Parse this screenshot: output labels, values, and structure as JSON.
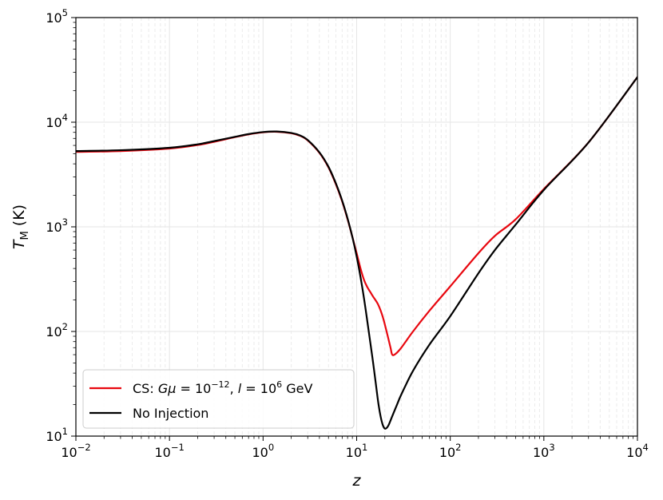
{
  "chart_data": {
    "type": "line",
    "xscale": "log",
    "yscale": "log",
    "xlim": [
      0.01,
      10000
    ],
    "ylim": [
      10,
      100000
    ],
    "grid": true,
    "legend_position": "lower-left",
    "xlabel": "z",
    "ylabel": {
      "main": "T",
      "sub": "M",
      "unit": " (K)"
    },
    "x_ticks": [
      {
        "value": 0.01,
        "base": "10",
        "exp": "−2"
      },
      {
        "value": 0.1,
        "base": "10",
        "exp": "−1"
      },
      {
        "value": 1,
        "base": "10",
        "exp": "0"
      },
      {
        "value": 10,
        "base": "10",
        "exp": "1"
      },
      {
        "value": 100,
        "base": "10",
        "exp": "2"
      },
      {
        "value": 1000,
        "base": "10",
        "exp": "3"
      },
      {
        "value": 10000,
        "base": "10",
        "exp": "4"
      }
    ],
    "y_ticks": [
      {
        "value": 10,
        "base": "10",
        "exp": "1"
      },
      {
        "value": 100,
        "base": "10",
        "exp": "2"
      },
      {
        "value": 1000,
        "base": "10",
        "exp": "3"
      },
      {
        "value": 10000,
        "base": "10",
        "exp": "4"
      },
      {
        "value": 100000,
        "base": "10",
        "exp": "5"
      }
    ],
    "series": [
      {
        "name": "CS: Gμ = 10^−12, l = 10^6 GeV",
        "legend": {
          "prefix": "CS: ",
          "g": "G",
          "mu": "μ",
          "eq1": " = 10",
          "exp1": "−12",
          "comma": ", ",
          "l": "l",
          "eq2": " = 10",
          "exp2": "6",
          "unit": " GeV"
        },
        "color": "#e8070f",
        "x": [
          0.01,
          0.03,
          0.1,
          0.2,
          0.3,
          0.5,
          0.7,
          1.0,
          1.4,
          2.0,
          2.5,
          3.0,
          4.0,
          5.0,
          6.0,
          7.0,
          8.0,
          9.0,
          10,
          11,
          12,
          13,
          14,
          15,
          17,
          19,
          21,
          23,
          24,
          26,
          30,
          40,
          60,
          100,
          200,
          300,
          500,
          1000,
          3000,
          10000
        ],
        "y": [
          5200,
          5300,
          5600,
          6050,
          6500,
          7200,
          7650,
          8000,
          8100,
          7850,
          7400,
          6700,
          5100,
          3700,
          2550,
          1750,
          1180,
          800,
          560,
          400,
          310,
          265,
          238,
          215,
          180,
          138,
          98,
          70,
          60,
          61,
          70,
          100,
          158,
          270,
          560,
          820,
          1180,
          2300,
          6400,
          27000
        ]
      },
      {
        "name": "No Injection",
        "color": "#000000",
        "x": [
          0.01,
          0.03,
          0.1,
          0.2,
          0.3,
          0.5,
          0.7,
          1.0,
          1.4,
          2.0,
          2.5,
          3.0,
          4.0,
          5.0,
          6.0,
          7.0,
          8.0,
          9.0,
          10,
          11,
          12,
          13,
          14,
          15,
          16,
          17,
          18,
          19,
          20,
          21,
          22,
          24,
          27,
          30,
          40,
          60,
          100,
          200,
          300,
          500,
          1000,
          3000,
          10000
        ],
        "y": [
          5300,
          5400,
          5700,
          6150,
          6600,
          7250,
          7700,
          8050,
          8150,
          7900,
          7450,
          6750,
          5150,
          3750,
          2600,
          1780,
          1200,
          800,
          520,
          330,
          205,
          125,
          78,
          50,
          32,
          21,
          15.5,
          12.8,
          11.8,
          12.0,
          12.8,
          15.5,
          20,
          25,
          42,
          75,
          140,
          360,
          600,
          1050,
          2250,
          6400,
          27000
        ]
      }
    ]
  }
}
